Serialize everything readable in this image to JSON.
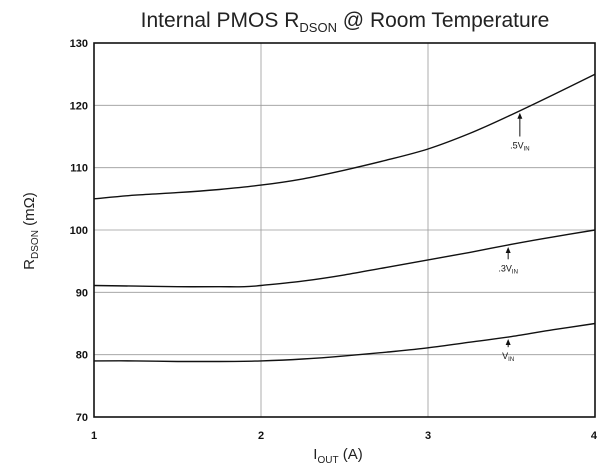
{
  "chart_data": {
    "type": "line",
    "title": {
      "prefix": "Internal PMOS R",
      "sub": "DSON",
      "suffix": " @ Room Temperature"
    },
    "xlabel": {
      "main": "I",
      "sub": "OUT",
      "suffix": " (A)"
    },
    "ylabel": {
      "main": "R",
      "sub": "DSON",
      "suffix": " (mΩ)"
    },
    "xlim": [
      1,
      4
    ],
    "ylim": [
      70,
      130
    ],
    "x_ticks": [
      1,
      2,
      3,
      4
    ],
    "y_ticks": [
      70,
      80,
      90,
      100,
      110,
      120,
      130
    ],
    "grid": true,
    "series": [
      {
        "label": {
          "main": ".5V",
          "sub": "IN"
        },
        "x": [
          1,
          1.25,
          1.5,
          1.75,
          2,
          2.25,
          2.5,
          2.75,
          3,
          3.25,
          3.5,
          3.75,
          4
        ],
        "values": [
          105,
          105.6,
          106,
          106.5,
          107.2,
          108.2,
          109.6,
          111.2,
          113,
          115.5,
          118.5,
          121.7,
          125
        ],
        "annotation_x": 3.55,
        "annotation_y": 115
      },
      {
        "label": {
          "main": ".3V",
          "sub": "IN"
        },
        "x": [
          1,
          1.25,
          1.5,
          1.75,
          1.9,
          2,
          2.25,
          2.5,
          2.75,
          3,
          3.25,
          3.5,
          3.75,
          4
        ],
        "values": [
          91.1,
          91,
          90.9,
          90.9,
          90.9,
          91.1,
          91.8,
          92.8,
          94,
          95.2,
          96.4,
          97.7,
          98.9,
          100
        ],
        "annotation_x": 3.48,
        "annotation_y": 95.3
      },
      {
        "label": {
          "main": "V",
          "sub": "IN"
        },
        "x": [
          1,
          1.25,
          1.5,
          1.75,
          2,
          2.25,
          2.5,
          2.75,
          3,
          3.25,
          3.5,
          3.75,
          4
        ],
        "values": [
          79,
          79,
          78.9,
          78.9,
          79,
          79.3,
          79.8,
          80.4,
          81.1,
          82,
          82.9,
          84,
          85
        ],
        "annotation_x": 3.48,
        "annotation_y": 81.2
      }
    ]
  }
}
